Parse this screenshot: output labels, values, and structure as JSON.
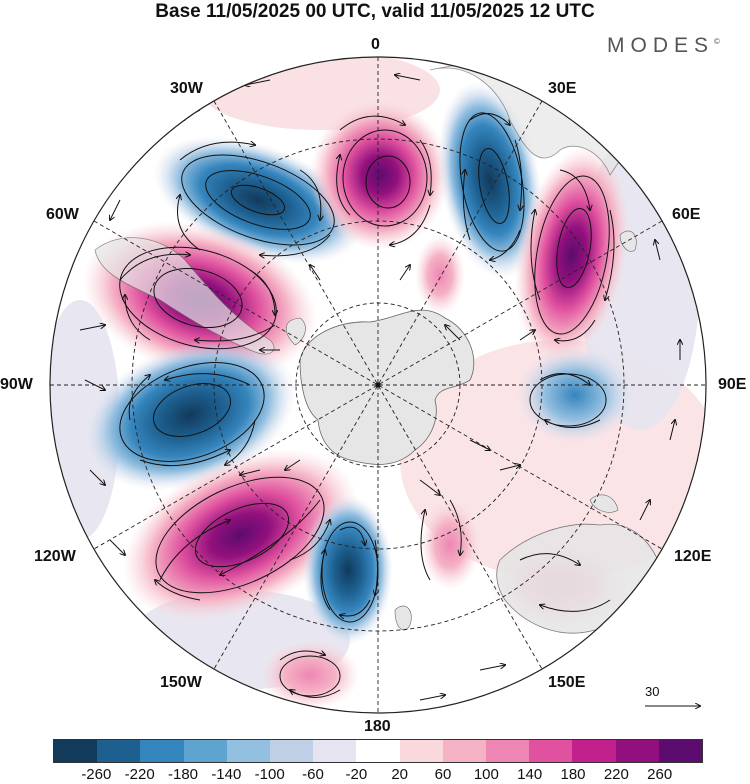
{
  "title": "Base 11/05/2025 00 UTC, valid 11/05/2025 12 UTC",
  "brand": "MODES",
  "brand_mark": "©",
  "longitude_labels": {
    "top": "0",
    "bottom": "180",
    "left": "90W",
    "right": "90E",
    "w30": "30W",
    "e30": "30E",
    "w60": "60W",
    "e60": "60E",
    "w120": "120W",
    "e120": "120E",
    "w150": "150W",
    "e150": "150E"
  },
  "reference_vector_label": "30",
  "colorbar": {
    "colors": [
      "#123a5b",
      "#1d5f8f",
      "#3585bd",
      "#5fa3d0",
      "#93bfe0",
      "#bfcfe6",
      "#e6e4f0",
      "#ffffff",
      "#f9d9dc",
      "#f5b2c5",
      "#ee86b4",
      "#e0529f",
      "#c2208c",
      "#92107d",
      "#5c0c6e"
    ],
    "tick_labels": [
      "-260",
      "-220",
      "-180",
      "-140",
      "-100",
      "-60",
      "-20",
      "20",
      "60",
      "100",
      "140",
      "180",
      "220",
      "260"
    ]
  },
  "anomaly_centers": [
    {
      "sign": "negative",
      "strength": "strong",
      "sector": "45W-60W"
    },
    {
      "sign": "positive",
      "strength": "strong",
      "sector": "0-15W"
    },
    {
      "sign": "negative",
      "strength": "strong",
      "sector": "25E"
    },
    {
      "sign": "positive",
      "strength": "strong",
      "sector": "55E"
    },
    {
      "sign": "positive",
      "strength": "strong",
      "sector": "70W"
    },
    {
      "sign": "negative",
      "strength": "strong",
      "sector": "95W"
    },
    {
      "sign": "positive",
      "strength": "strong",
      "sector": "125W"
    },
    {
      "sign": "negative",
      "strength": "moderate",
      "sector": "170W"
    },
    {
      "sign": "positive",
      "strength": "moderate",
      "sector": "150W-160W"
    },
    {
      "sign": "negative",
      "strength": "moderate",
      "sector": "95E"
    },
    {
      "sign": "positive",
      "strength": "weak",
      "sector": "140E"
    }
  ]
}
